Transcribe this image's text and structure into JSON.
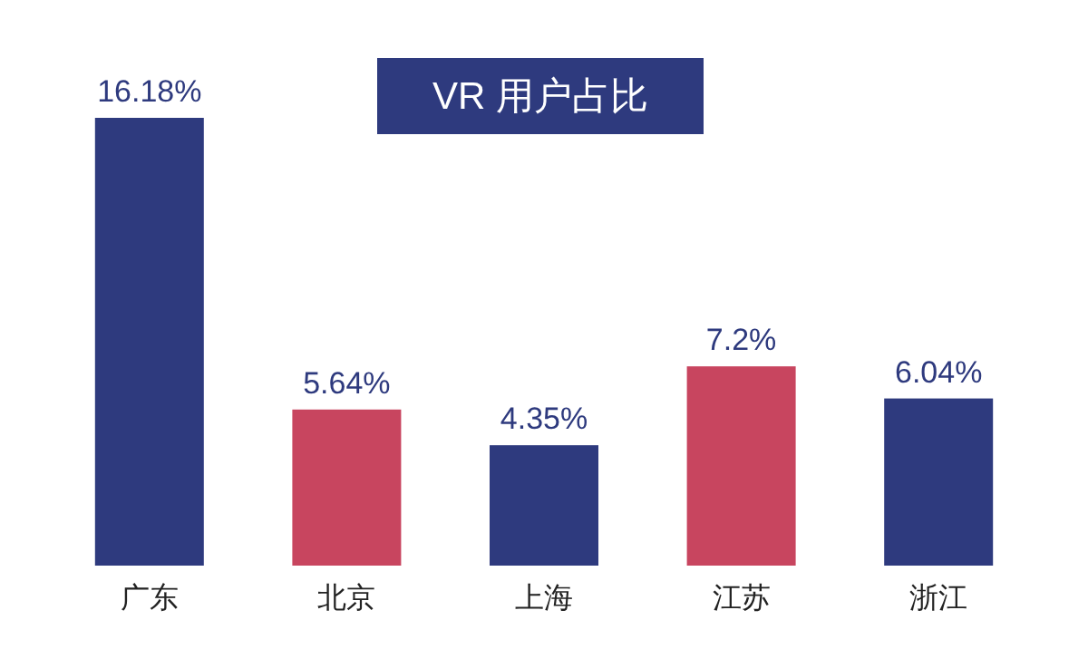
{
  "chart_data": {
    "type": "bar",
    "title": "VR 用户占比",
    "categories": [
      "广东",
      "北京",
      "上海",
      "江苏",
      "浙江"
    ],
    "values": [
      16.18,
      5.64,
      4.35,
      7.2,
      6.04
    ],
    "colors": [
      "#2e3a7e",
      "#c8455f",
      "#2e3a7e",
      "#c8455f",
      "#2e3a7e"
    ],
    "value_labels": [
      "16.18%",
      "5.64%",
      "4.35%",
      "7.2%",
      "6.04%"
    ]
  }
}
